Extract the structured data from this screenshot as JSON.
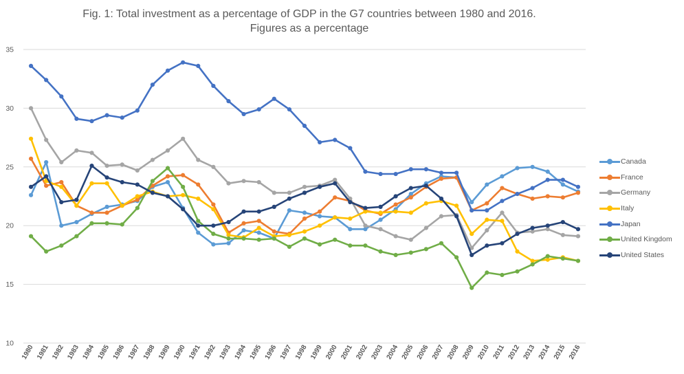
{
  "chart_data": {
    "type": "line",
    "title": "Fig. 1: Total investment as a percentage of GDP in the G7 countries between 1980 and 2016. Figures as a percentage",
    "xlabel": "",
    "ylabel": "",
    "ylim": [
      10,
      35
    ],
    "yticks": [
      "10",
      "15",
      "20",
      "25",
      "30",
      "35"
    ],
    "grid": true,
    "legend_position": "right",
    "categories": [
      "1980",
      "1981",
      "1982",
      "1983",
      "1984",
      "1985",
      "1986",
      "1987",
      "1988",
      "1989",
      "1990",
      "1991",
      "1992",
      "1993",
      "1994",
      "1995",
      "1996",
      "1997",
      "1998",
      "1999",
      "2000",
      "2001",
      "2002",
      "2003",
      "2004",
      "2005",
      "2006",
      "2007",
      "2008",
      "2009",
      "2010",
      "2011",
      "2012",
      "2013",
      "2014",
      "2015",
      "2016"
    ],
    "series": [
      {
        "name": "Canada",
        "color": "#5b9bd5",
        "values": [
          22.6,
          25.4,
          20.0,
          20.3,
          21.0,
          21.6,
          21.8,
          22.1,
          23.3,
          23.7,
          21.5,
          19.4,
          18.4,
          18.5,
          19.6,
          19.4,
          18.9,
          21.3,
          21.1,
          20.8,
          20.7,
          19.7,
          19.7,
          20.5,
          21.4,
          22.7,
          23.6,
          24.2,
          24.1,
          22.0,
          23.5,
          24.2,
          24.9,
          25.0,
          24.6,
          23.5,
          22.9
        ]
      },
      {
        "name": "France",
        "color": "#ed7d31",
        "values": [
          25.7,
          23.4,
          23.7,
          21.7,
          21.1,
          21.1,
          21.7,
          22.2,
          23.4,
          24.2,
          24.3,
          23.5,
          21.8,
          19.4,
          20.2,
          20.4,
          19.5,
          19.3,
          20.6,
          21.2,
          22.4,
          22.1,
          21.3,
          21.0,
          21.8,
          22.4,
          23.3,
          24.0,
          24.1,
          21.3,
          21.9,
          23.2,
          22.7,
          22.3,
          22.5,
          22.4,
          22.8
        ]
      },
      {
        "name": "Germany",
        "color": "#a5a5a5",
        "values": [
          30.0,
          27.3,
          25.4,
          26.4,
          26.2,
          25.1,
          25.2,
          24.7,
          25.6,
          26.4,
          27.4,
          25.6,
          25.0,
          23.6,
          23.8,
          23.7,
          22.8,
          22.8,
          23.3,
          23.4,
          23.9,
          22.3,
          20.0,
          19.7,
          19.1,
          18.8,
          19.8,
          20.8,
          20.9,
          18.1,
          19.6,
          21.1,
          19.4,
          19.5,
          19.7,
          19.2,
          19.1
        ]
      },
      {
        "name": "Italy",
        "color": "#ffc000",
        "values": [
          27.4,
          23.8,
          23.3,
          21.7,
          23.6,
          23.6,
          21.7,
          22.5,
          22.9,
          22.5,
          22.6,
          22.3,
          21.4,
          19.2,
          19.0,
          19.8,
          19.1,
          19.2,
          19.5,
          20.0,
          20.7,
          20.6,
          21.2,
          21.1,
          21.2,
          21.1,
          21.9,
          22.1,
          21.7,
          19.3,
          20.5,
          20.4,
          17.8,
          17.0,
          17.1,
          17.3,
          17.0
        ]
      },
      {
        "name": "Japan",
        "color": "#4472c4",
        "values": [
          33.6,
          32.4,
          31.0,
          29.1,
          28.9,
          29.4,
          29.2,
          29.8,
          32.0,
          33.2,
          33.9,
          33.6,
          31.9,
          30.6,
          29.5,
          29.9,
          30.8,
          29.9,
          28.5,
          27.1,
          27.3,
          26.6,
          24.6,
          24.4,
          24.4,
          24.8,
          24.8,
          24.5,
          24.5,
          21.3,
          21.3,
          22.1,
          22.7,
          23.2,
          23.9,
          23.9,
          23.3
        ]
      },
      {
        "name": "United Kingdom",
        "color": "#70ad47",
        "values": [
          19.1,
          17.8,
          18.3,
          19.1,
          20.2,
          20.2,
          20.1,
          21.5,
          23.8,
          24.9,
          23.3,
          20.4,
          19.3,
          18.9,
          18.9,
          18.8,
          18.9,
          18.2,
          18.9,
          18.4,
          18.8,
          18.3,
          18.3,
          17.8,
          17.5,
          17.7,
          18.0,
          18.5,
          17.3,
          14.7,
          16.0,
          15.8,
          16.1,
          16.7,
          17.4,
          17.2,
          17.0
        ]
      },
      {
        "name": "United States",
        "color": "#264478",
        "values": [
          23.3,
          24.2,
          22.0,
          22.2,
          25.1,
          24.1,
          23.7,
          23.5,
          22.8,
          22.5,
          21.4,
          20.0,
          20.0,
          20.3,
          21.2,
          21.2,
          21.6,
          22.3,
          22.8,
          23.3,
          23.6,
          22.0,
          21.5,
          21.6,
          22.5,
          23.2,
          23.4,
          22.3,
          20.8,
          17.5,
          18.3,
          18.5,
          19.3,
          19.8,
          20.0,
          20.3,
          19.7
        ]
      }
    ]
  }
}
